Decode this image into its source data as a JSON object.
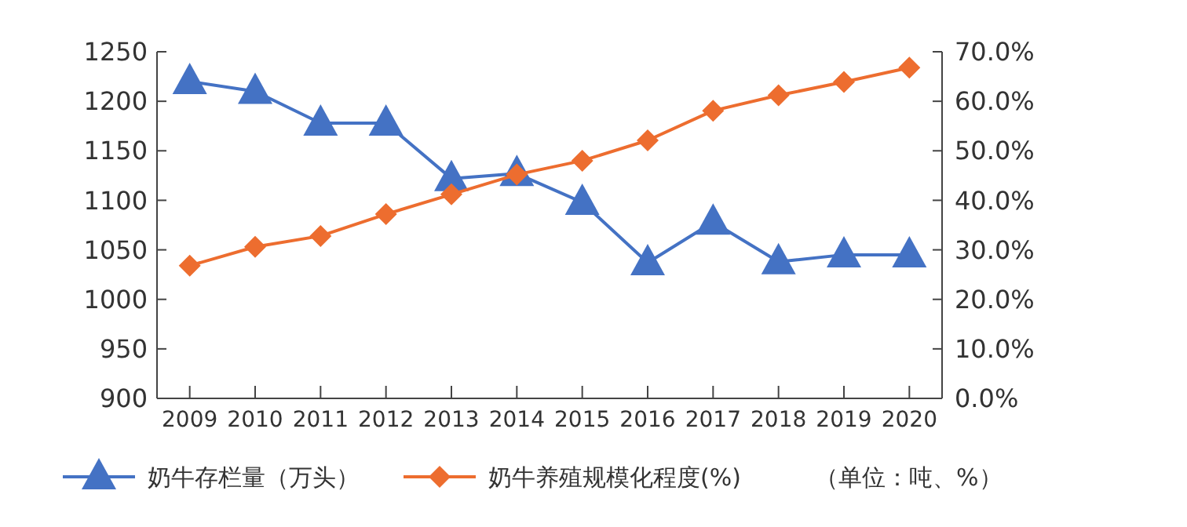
{
  "chart_data": {
    "type": "line",
    "categories": [
      "2009",
      "2010",
      "2011",
      "2012",
      "2013",
      "2014",
      "2015",
      "2016",
      "2017",
      "2018",
      "2019",
      "2020"
    ],
    "series": [
      {
        "name": "奶牛存栏量（万头）",
        "color": "#4472c4",
        "marker": "triangle",
        "values": [
          1220,
          1210,
          1178,
          1178,
          1122,
          1127,
          1098,
          1037,
          1078,
          1038,
          1045,
          1045
        ]
      },
      {
        "name": "奶牛养殖规模化程度(%)",
        "color": "#ed6d2f",
        "marker": "diamond",
        "axis": "y2",
        "values": [
          26.8,
          30.6,
          32.8,
          37.2,
          41.2,
          45.2,
          48,
          52.1,
          58.1,
          61.2,
          63.9,
          66.8
        ]
      }
    ],
    "ylim": [
      900,
      1250
    ],
    "yticks": [
      900,
      950,
      1000,
      1050,
      1100,
      1150,
      1200,
      1250
    ],
    "y2lim": [
      0,
      70
    ],
    "y2ticks": [
      {
        "value": 0,
        "label": "0.0%"
      },
      {
        "value": 10,
        "label": "10.0%"
      },
      {
        "value": 20,
        "label": "20.0%"
      },
      {
        "value": 30,
        "label": "30.0%"
      },
      {
        "value": 40,
        "label": "40.0%"
      },
      {
        "value": 50,
        "label": "50.0%"
      },
      {
        "value": 60,
        "label": "60.0%"
      },
      {
        "value": 70,
        "label": "70.0%"
      }
    ],
    "legend": "bottom",
    "grid": false,
    "annotations": [
      "（单位：吨、%）"
    ]
  }
}
